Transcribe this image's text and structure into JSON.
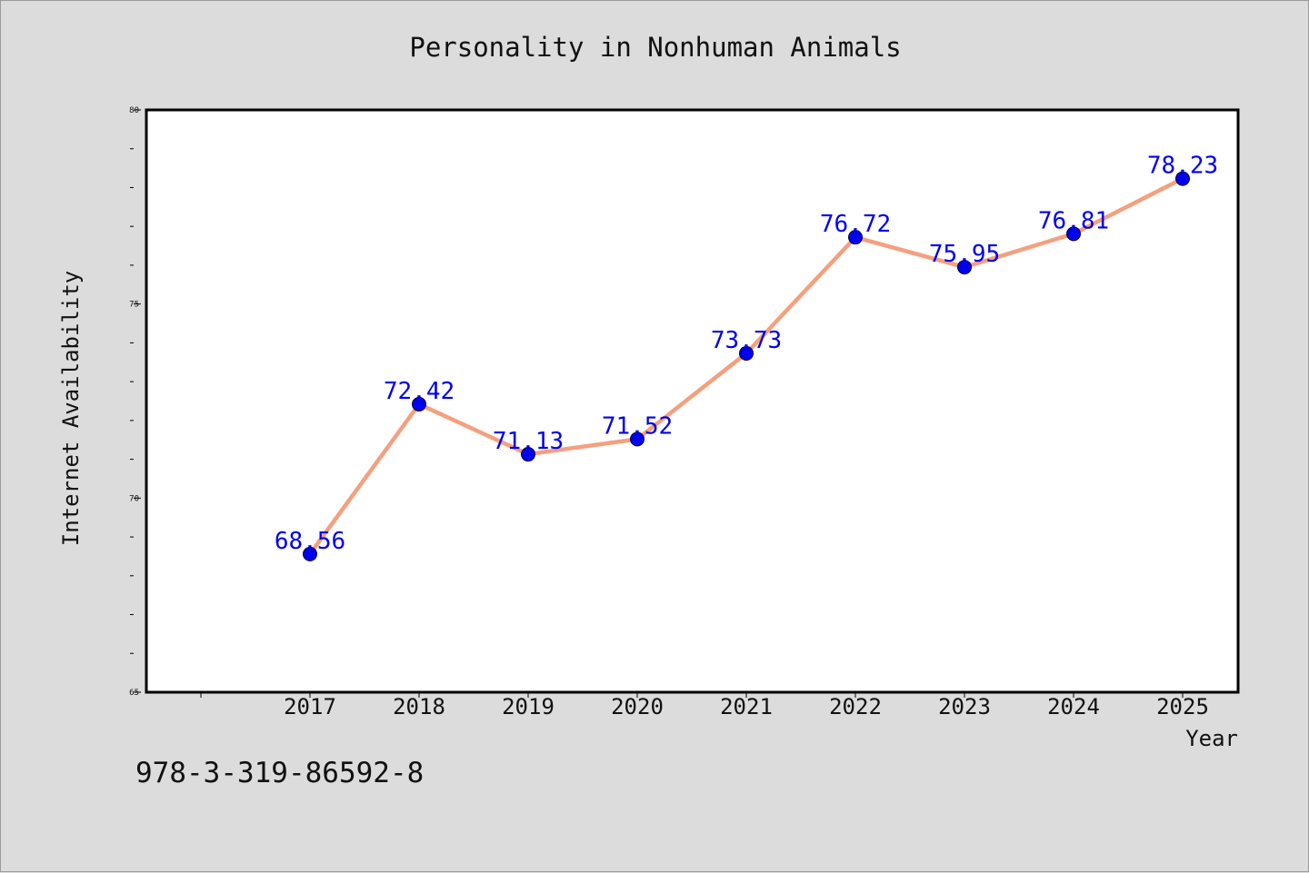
{
  "chart_data": {
    "type": "line",
    "title": "Personality in Nonhuman Animals",
    "xlabel": "Year",
    "ylabel": "Internet Availability",
    "categories": [
      "2017",
      "2018",
      "2019",
      "2020",
      "2021",
      "2022",
      "2023",
      "2024",
      "2025"
    ],
    "series": [
      {
        "values": [
          68.56,
          72.42,
          71.13,
          71.52,
          73.73,
          76.72,
          75.95,
          76.81,
          78.23
        ],
        "labels": [
          "68.56",
          "72.42",
          "71.13",
          "71.52",
          "73.73",
          "76.72",
          "75.95",
          "76.81",
          "78.23"
        ]
      }
    ],
    "ylim": [
      65,
      80
    ],
    "yticks": [
      "65",
      "70",
      "75",
      "80"
    ],
    "grid": false,
    "legend": "none",
    "colors": {
      "line": "#f4a07f",
      "marker": "#0000ee",
      "data_label": "#0000ee",
      "background": "#dcdcdc",
      "plot_area": "#ffffff"
    }
  },
  "footer": {
    "identifier": "978-3-319-86592-8"
  }
}
